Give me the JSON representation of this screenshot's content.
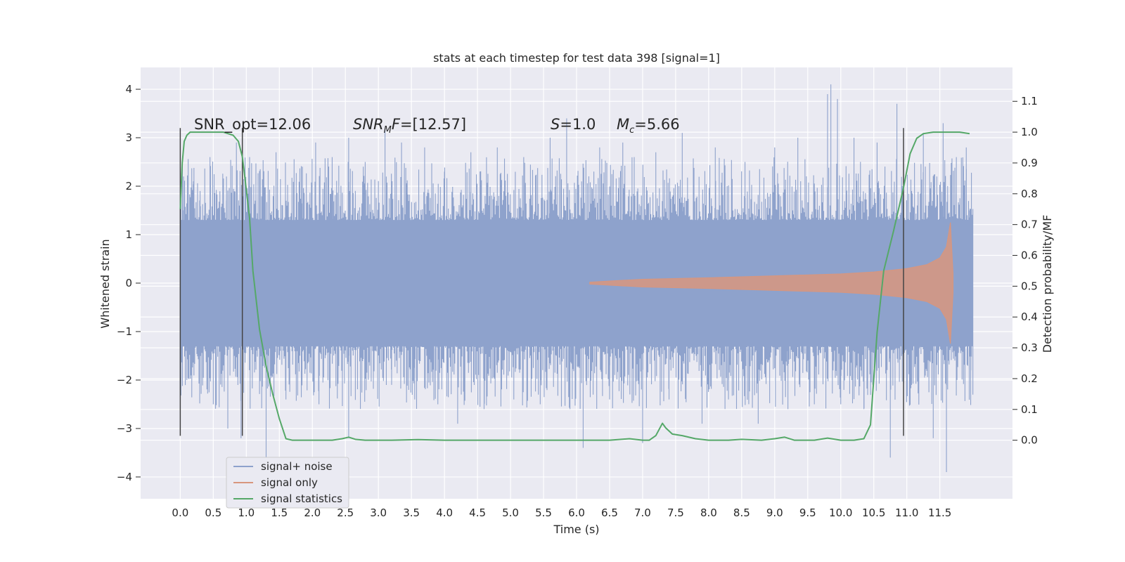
{
  "chart_data": {
    "type": "line",
    "title": "stats at each timestep for test data 398 [signal=1]",
    "xlabel": "Time (s)",
    "ylabel": "Whitened strain",
    "ylabel_right": "Detection probability/MF",
    "xlim": [
      -0.6,
      12.6
    ],
    "ylim": [
      -4.45,
      4.45
    ],
    "ylim_right": [
      -0.19,
      1.21
    ],
    "x_ticks": [
      "0.0",
      "0.5",
      "1.0",
      "1.5",
      "2.0",
      "2.5",
      "3.0",
      "3.5",
      "4.0",
      "4.5",
      "5.0",
      "5.5",
      "6.0",
      "6.5",
      "7.0",
      "7.5",
      "8.0",
      "8.5",
      "9.0",
      "9.5",
      "10.0",
      "10.5",
      "11.0",
      "11.5"
    ],
    "y_ticks": [
      "4",
      "3",
      "2",
      "1",
      "0",
      "−1",
      "−2",
      "−3",
      "−4"
    ],
    "y_ticks_right": [
      "1.1",
      "1.0",
      "0.9",
      "0.8",
      "0.7",
      "0.6",
      "0.5",
      "0.4",
      "0.3",
      "0.2",
      "0.1",
      "0.0"
    ],
    "grid": true,
    "legend_position": "lower-left",
    "annotations": [
      {
        "text": "SNR_opt=12.06",
        "x": 0.2,
        "y": 3.3
      },
      {
        "text": "SNR_MF=[12.57]",
        "x": 2.6,
        "y": 3.3
      },
      {
        "text": "S=1.0",
        "x": 5.6,
        "y": 3.3
      },
      {
        "text": "M_c=5.66",
        "x": 6.6,
        "y": 3.3
      }
    ],
    "vertical_markers": [
      0.0,
      0.94,
      10.95
    ],
    "vertical_marker_range": [
      -3.15,
      3.2
    ],
    "series": [
      {
        "name": "signal+ noise",
        "color": "#8ea2cc",
        "axis": "left",
        "x_range": [
          0.0,
          12.0
        ],
        "envelope_typical": 1.3,
        "peaks": [
          [
            0.05,
            2.2
          ],
          [
            0.1,
            -2.0
          ],
          [
            0.2,
            2.1
          ],
          [
            0.3,
            1.9
          ],
          [
            0.45,
            2.6
          ],
          [
            0.5,
            -2.5
          ],
          [
            0.7,
            2.2
          ],
          [
            0.72,
            -3.0
          ],
          [
            0.85,
            2.9
          ],
          [
            0.92,
            -3.2
          ],
          [
            1.05,
            2.6
          ],
          [
            1.3,
            -3.7
          ],
          [
            1.45,
            2.7
          ],
          [
            1.6,
            -2.4
          ],
          [
            1.85,
            2.4
          ],
          [
            2.05,
            2.9
          ],
          [
            2.1,
            -2.5
          ],
          [
            2.3,
            2.6
          ],
          [
            2.55,
            -3.2
          ],
          [
            2.55,
            3.0
          ],
          [
            2.8,
            2.5
          ],
          [
            3.1,
            3.2
          ],
          [
            3.2,
            -2.1
          ],
          [
            3.35,
            2.9
          ],
          [
            3.55,
            -2.4
          ],
          [
            3.7,
            2.8
          ],
          [
            3.9,
            -2.5
          ],
          [
            4.0,
            2.3
          ],
          [
            4.2,
            -2.9
          ],
          [
            4.4,
            2.7
          ],
          [
            4.6,
            -2.6
          ],
          [
            4.8,
            2.8
          ],
          [
            5.05,
            -2.4
          ],
          [
            5.2,
            2.6
          ],
          [
            5.45,
            -2.5
          ],
          [
            5.6,
            3.0
          ],
          [
            5.85,
            3.4
          ],
          [
            5.9,
            -2.6
          ],
          [
            6.1,
            -3.4
          ],
          [
            6.35,
            2.8
          ],
          [
            6.5,
            -2.4
          ],
          [
            6.7,
            2.9
          ],
          [
            7.0,
            -3.3
          ],
          [
            7.2,
            2.7
          ],
          [
            7.4,
            -2.4
          ],
          [
            7.6,
            3.1
          ],
          [
            7.9,
            -2.9
          ],
          [
            8.1,
            2.8
          ],
          [
            8.3,
            -2.4
          ],
          [
            8.55,
            2.5
          ],
          [
            8.75,
            -2.9
          ],
          [
            9.0,
            2.8
          ],
          [
            9.2,
            -2.6
          ],
          [
            9.35,
            3.0
          ],
          [
            9.6,
            -2.5
          ],
          [
            9.8,
            3.9
          ],
          [
            9.85,
            4.1
          ],
          [
            9.95,
            3.8
          ],
          [
            10.0,
            -2.5
          ],
          [
            10.2,
            3.0
          ],
          [
            10.35,
            -2.6
          ],
          [
            10.55,
            2.9
          ],
          [
            10.75,
            -3.6
          ],
          [
            10.85,
            3.7
          ],
          [
            11.05,
            -2.5
          ],
          [
            11.25,
            3.1
          ],
          [
            11.4,
            -3.2
          ],
          [
            11.55,
            3.3
          ],
          [
            11.6,
            -3.9
          ],
          [
            11.75,
            2.6
          ],
          [
            11.9,
            2.8
          ],
          [
            11.95,
            1.5
          ],
          [
            11.97,
            -1.8
          ]
        ]
      },
      {
        "name": "signal only",
        "color": "#d8967e",
        "axis": "left",
        "description_points": [
          [
            6.2,
            0.02
          ],
          [
            7.0,
            0.08
          ],
          [
            8.0,
            0.11
          ],
          [
            9.0,
            0.15
          ],
          [
            10.0,
            0.19
          ],
          [
            10.5,
            0.23
          ],
          [
            11.0,
            0.3
          ],
          [
            11.3,
            0.38
          ],
          [
            11.5,
            0.52
          ],
          [
            11.6,
            0.75
          ],
          [
            11.66,
            1.25
          ],
          [
            11.7,
            0.2
          ]
        ]
      },
      {
        "name": "signal statistics",
        "color": "#55a868",
        "axis": "right",
        "x": [
          0.0,
          0.03,
          0.06,
          0.1,
          0.15,
          0.25,
          0.5,
          0.65,
          0.8,
          0.88,
          0.94,
          0.98,
          1.05,
          1.1,
          1.2,
          1.3,
          1.4,
          1.5,
          1.6,
          1.7,
          1.9,
          2.1,
          2.3,
          2.45,
          2.55,
          2.65,
          2.8,
          3.0,
          3.2,
          3.6,
          4.0,
          4.5,
          5.0,
          5.5,
          6.0,
          6.5,
          6.8,
          7.0,
          7.1,
          7.2,
          7.3,
          7.35,
          7.45,
          7.6,
          7.8,
          8.0,
          8.3,
          8.5,
          8.8,
          9.0,
          9.15,
          9.3,
          9.6,
          9.8,
          10.0,
          10.2,
          10.35,
          10.45,
          10.55,
          10.65,
          10.8,
          10.95,
          11.05,
          11.15,
          11.25,
          11.4,
          11.6,
          11.8,
          11.95
        ],
        "y": [
          0.75,
          0.9,
          0.97,
          0.99,
          1.0,
          1.0,
          1.0,
          1.0,
          0.99,
          0.97,
          0.92,
          0.85,
          0.72,
          0.55,
          0.36,
          0.24,
          0.15,
          0.07,
          0.005,
          0.0,
          0.0,
          0.0,
          0.0,
          0.005,
          0.01,
          0.003,
          0.0,
          0.0,
          0.0,
          0.002,
          0.0,
          0.0,
          0.0,
          0.0,
          0.0,
          0.0,
          0.005,
          0.0,
          0.0,
          0.015,
          0.055,
          0.04,
          0.02,
          0.015,
          0.005,
          0.0,
          0.0,
          0.003,
          0.0,
          0.005,
          0.01,
          0.0,
          0.0,
          0.007,
          0.0,
          0.0,
          0.005,
          0.05,
          0.35,
          0.55,
          0.68,
          0.82,
          0.93,
          0.98,
          0.995,
          1.0,
          1.0,
          1.0,
          0.995
        ]
      }
    ]
  }
}
